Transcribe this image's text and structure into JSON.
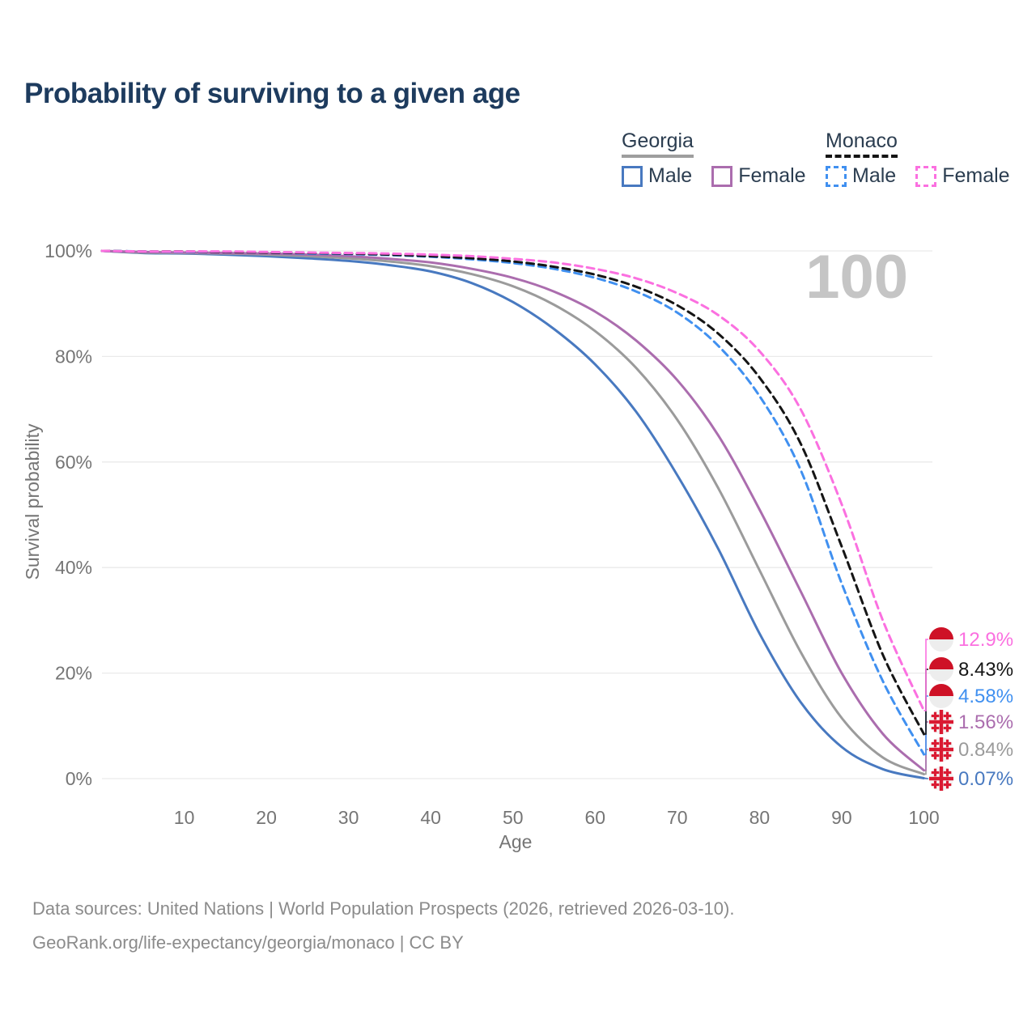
{
  "title": "Probability of surviving to a given age",
  "watermark": "100",
  "legend": {
    "groups": [
      {
        "id": "georgia",
        "label": "Georgia",
        "underline_style": "solid",
        "underline_color": "#9e9e9e",
        "items": [
          {
            "label": "Male",
            "color": "#4879c0",
            "dashed": false
          },
          {
            "label": "Female",
            "color": "#ab6dae",
            "dashed": false
          }
        ]
      },
      {
        "id": "monaco",
        "label": "Monaco",
        "underline_style": "dashed",
        "underline_color": "#141414",
        "items": [
          {
            "label": "Male",
            "color": "#4090f0",
            "dashed": true
          },
          {
            "label": "Female",
            "color": "#fb70e0",
            "dashed": true
          }
        ]
      }
    ]
  },
  "chart_data": {
    "type": "line",
    "title": "Probability of surviving to a given age",
    "xlabel": "Age",
    "ylabel": "Survival probability",
    "xlim": [
      0,
      100
    ],
    "ylim": [
      0,
      100
    ],
    "grid": true,
    "x_ticks": [
      10,
      20,
      30,
      40,
      50,
      60,
      70,
      80,
      90,
      100
    ],
    "y_ticks_pct": [
      0,
      20,
      40,
      60,
      80,
      100
    ],
    "y_tick_suffix": "%",
    "x": [
      0,
      5,
      10,
      15,
      20,
      25,
      30,
      35,
      40,
      45,
      50,
      55,
      60,
      65,
      70,
      75,
      80,
      85,
      90,
      95,
      100
    ],
    "series": [
      {
        "id": "georgia-male",
        "name": "Georgia Male",
        "country": "Georgia",
        "sex": "Male",
        "color": "#4879c0",
        "dashed": false,
        "end_label": "0.07%",
        "end_value": 0.07,
        "values": [
          100,
          99.6,
          99.5,
          99.3,
          99.0,
          98.6,
          98.1,
          97.3,
          96.1,
          93.9,
          90.3,
          85.2,
          78.5,
          69.5,
          57.5,
          43.5,
          27.5,
          14.5,
          6.0,
          1.8,
          0.07
        ]
      },
      {
        "id": "georgia-both",
        "name": "Georgia Both sexes",
        "country": "Georgia",
        "sex": "Both",
        "color": "#9b9b9b",
        "dashed": false,
        "end_label": "0.84%",
        "end_value": 0.84,
        "values": [
          100,
          99.7,
          99.6,
          99.5,
          99.3,
          99.0,
          98.6,
          98.0,
          97.1,
          95.6,
          93.3,
          89.8,
          84.8,
          77.8,
          68.0,
          55.0,
          39.5,
          24.0,
          11.5,
          4.0,
          0.84
        ]
      },
      {
        "id": "georgia-female",
        "name": "Georgia Female",
        "country": "Georgia",
        "sex": "Female",
        "color": "#ab6dae",
        "dashed": false,
        "end_label": "1.56%",
        "end_value": 1.56,
        "values": [
          100,
          99.8,
          99.7,
          99.6,
          99.5,
          99.3,
          99.0,
          98.5,
          97.8,
          96.6,
          94.9,
          92.3,
          88.5,
          83.0,
          75.5,
          65.0,
          51.0,
          35.5,
          20.0,
          8.5,
          1.56
        ]
      },
      {
        "id": "monaco-male",
        "name": "Monaco Male",
        "country": "Monaco",
        "sex": "Male",
        "color": "#4090f0",
        "dashed": true,
        "end_label": "4.58%",
        "end_value": 4.58,
        "values": [
          100,
          99.9,
          99.8,
          99.8,
          99.7,
          99.5,
          99.4,
          99.2,
          98.9,
          98.4,
          97.7,
          96.6,
          94.9,
          92.3,
          88.3,
          82.0,
          72.5,
          58.5,
          37.0,
          18.5,
          4.58
        ]
      },
      {
        "id": "monaco-both",
        "name": "Monaco Both sexes",
        "country": "Monaco",
        "sex": "Both",
        "color": "#151515",
        "dashed": true,
        "end_label": "8.43%",
        "end_value": 8.43,
        "values": [
          100,
          99.9,
          99.9,
          99.8,
          99.7,
          99.6,
          99.5,
          99.3,
          99.0,
          98.6,
          98.0,
          97.0,
          95.5,
          93.2,
          89.7,
          84.3,
          76.0,
          63.5,
          44.0,
          23.5,
          8.43
        ]
      },
      {
        "id": "monaco-female",
        "name": "Monaco Female",
        "country": "Monaco",
        "sex": "Female",
        "color": "#fb70e0",
        "dashed": true,
        "end_label": "12.9%",
        "end_value": 12.9,
        "values": [
          100,
          99.9,
          99.9,
          99.9,
          99.8,
          99.7,
          99.6,
          99.5,
          99.3,
          99.0,
          98.5,
          97.8,
          96.6,
          94.8,
          92.0,
          87.8,
          81.0,
          70.0,
          52.0,
          30.0,
          12.9
        ]
      }
    ],
    "flag_colors": {
      "monaco_red": "#ce1126",
      "monaco_white": "#ededed",
      "georgia_red": "#da1a32",
      "georgia_white": "#f4f4f4"
    }
  },
  "footer": {
    "line1": "Data sources: United Nations | World Population Prospects (2026, retrieved 2026-03-10).",
    "line2": "GeoRank.org/life-expectancy/georgia/monaco | CC BY"
  }
}
